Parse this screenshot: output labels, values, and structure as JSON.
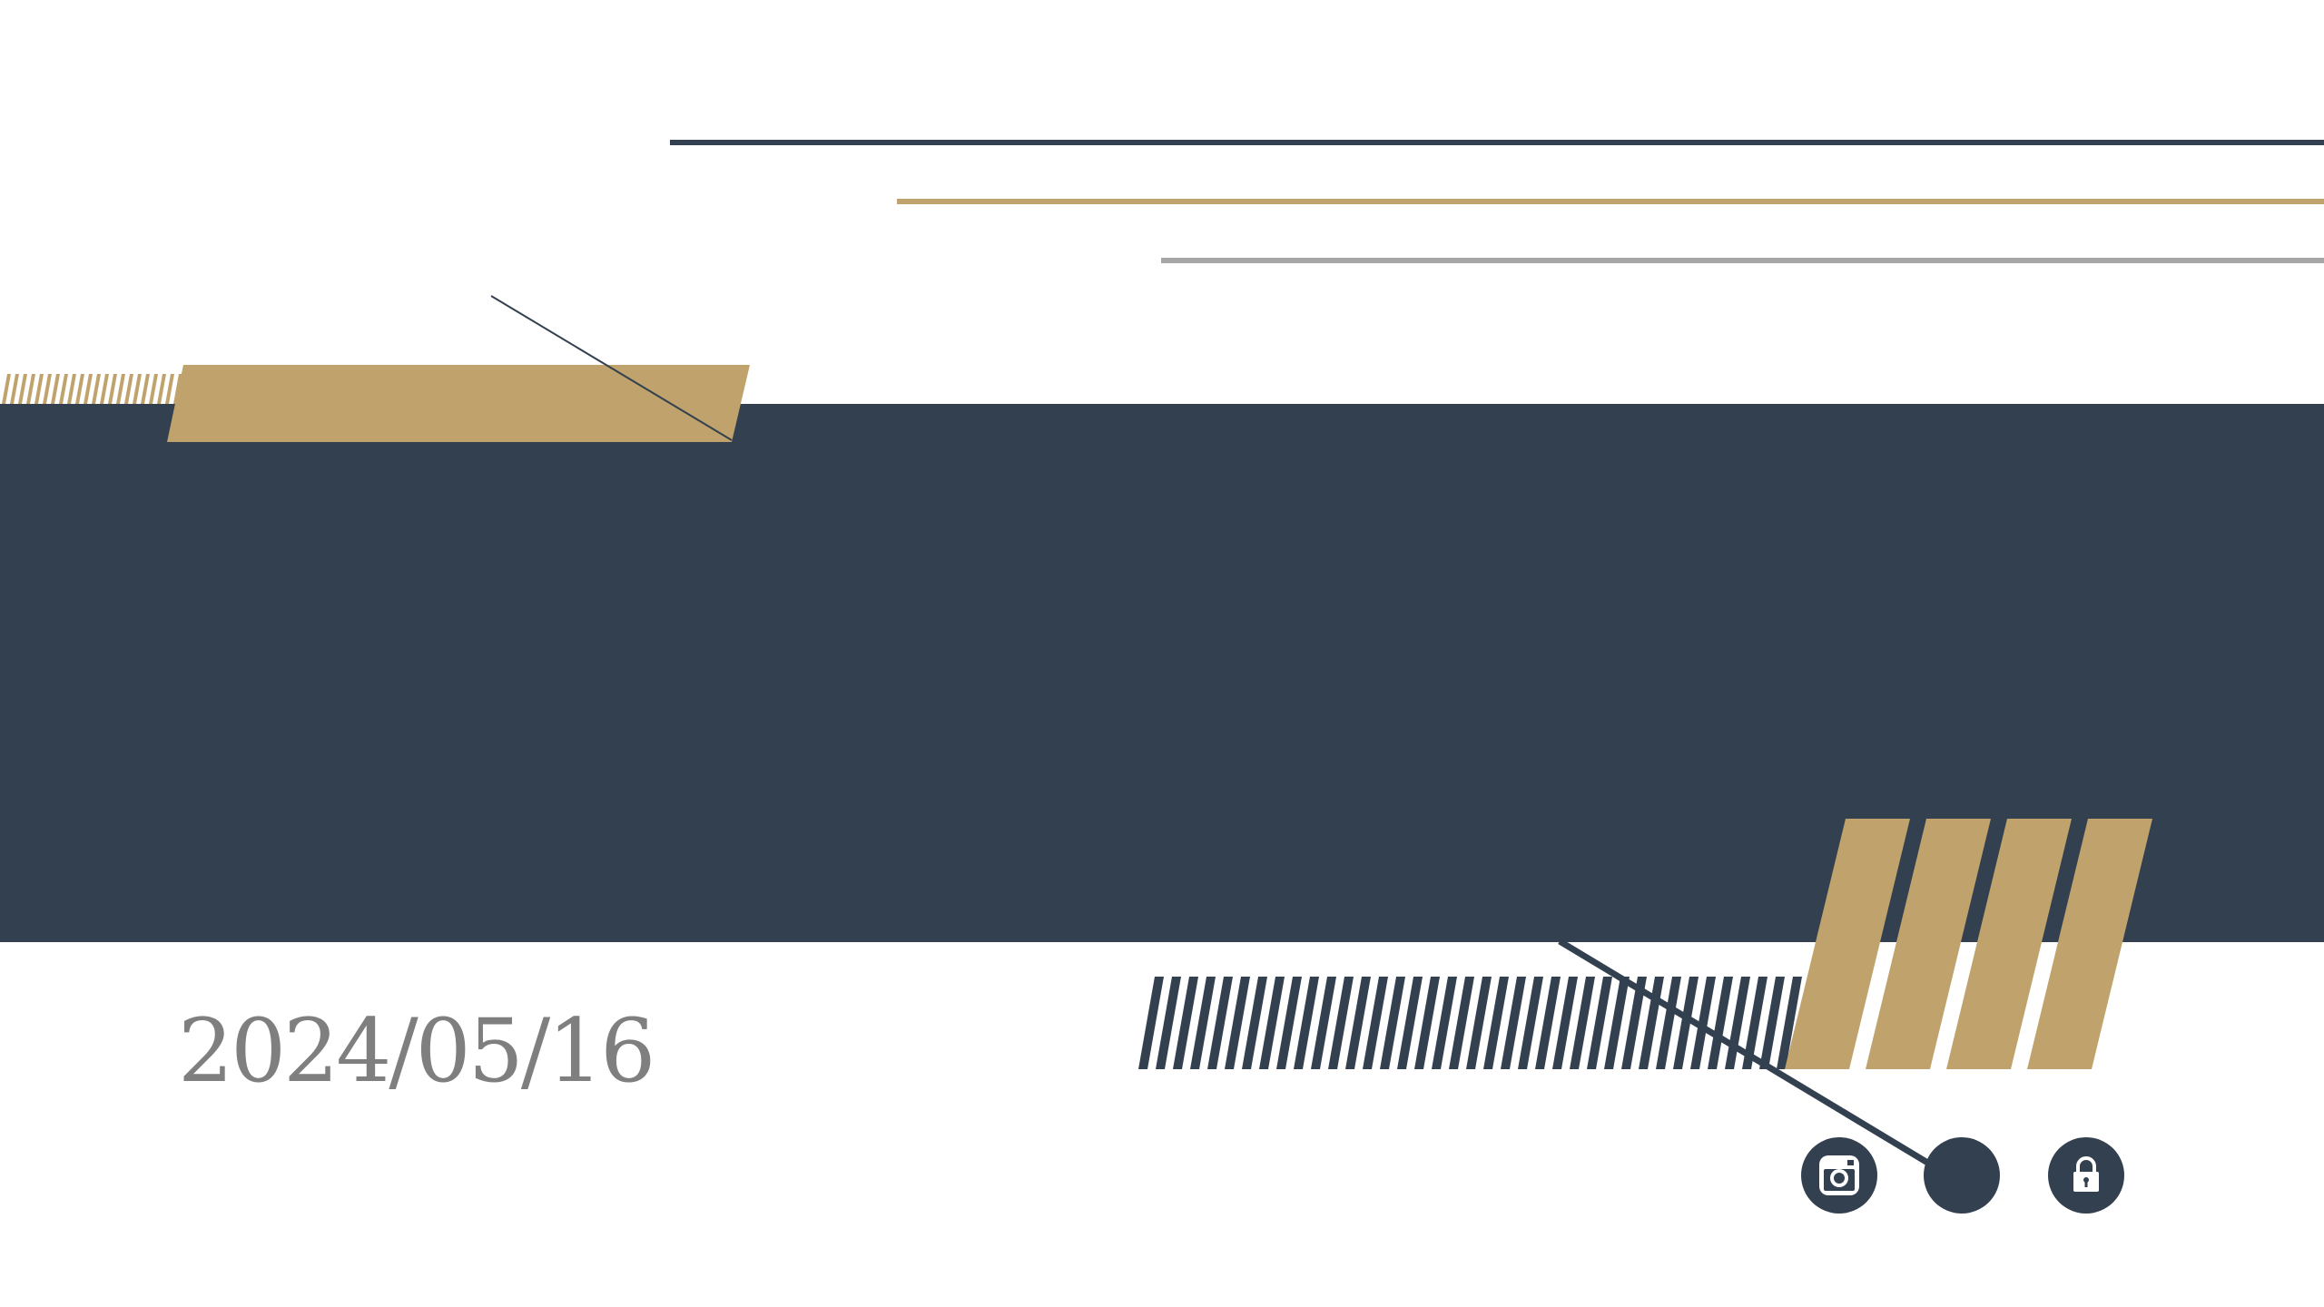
{
  "date_text": "2024/05/16",
  "colors": {
    "navy": "#334050",
    "gold": "#c0a36c",
    "gray": "#a6a6a6",
    "date": "#7f7f7f",
    "white": "#ffffff"
  },
  "icons": {
    "camera": "instagram-icon",
    "circle": "blank-circle-icon",
    "lock": "lock-icon"
  }
}
